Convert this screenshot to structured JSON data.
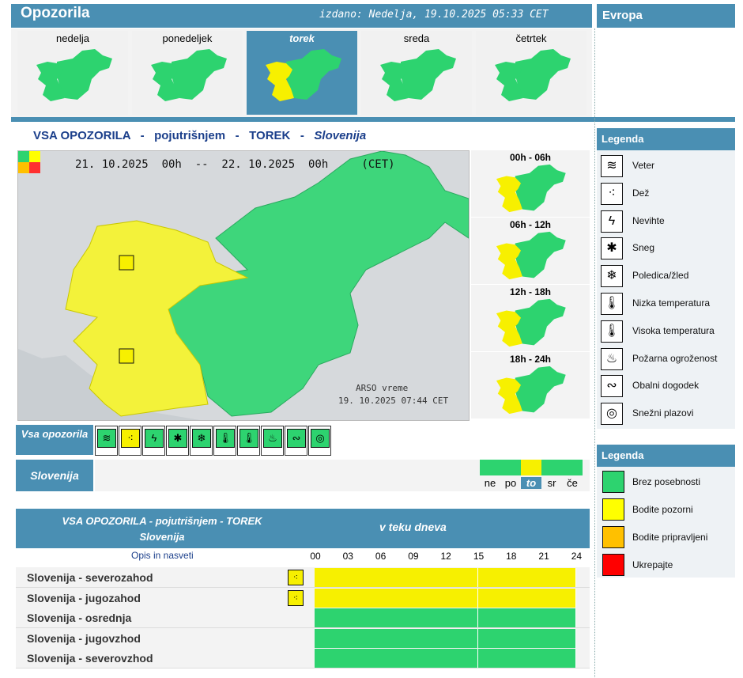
{
  "header": {
    "title": "Opozorila",
    "issued": "izdano: Nedelja, 19.10.2025 05:33 CET",
    "europe": "Evropa"
  },
  "days": [
    {
      "label": "nedelja",
      "active": false
    },
    {
      "label": "ponedeljek",
      "active": false
    },
    {
      "label": "torek",
      "active": true
    },
    {
      "label": "sreda",
      "active": false
    },
    {
      "label": "četrtek",
      "active": false
    }
  ],
  "headline": {
    "part1": "VSA OPOZORILA",
    "sep": "-",
    "part2": "pojutrišnjem",
    "part3": "TOREK",
    "part4": "Slovenija"
  },
  "map": {
    "date_range": "21. 10.2025  00h  --  22. 10.2025  00h     (CET)",
    "source": "ARSO vreme",
    "stamp": "19. 10.2025  07:44 CET"
  },
  "periods": [
    "00h - 06h",
    "06h - 12h",
    "12h - 18h",
    "18h - 24h"
  ],
  "strip": {
    "vsa_label": "Vsa opozorila",
    "region_label": "Slovenija",
    "icons": [
      "wind-icon",
      "rain-icon",
      "thunderstorm-icon",
      "snow-icon",
      "ice-icon",
      "low-temperature-icon",
      "high-temperature-icon",
      "fire-icon",
      "coastal-icon",
      "avalanche-icon"
    ],
    "weekdays": [
      {
        "label": "ne",
        "level": "green",
        "active": false
      },
      {
        "label": "po",
        "level": "green",
        "active": false
      },
      {
        "label": "to",
        "level": "yellow",
        "active": true
      },
      {
        "label": "sr",
        "level": "green",
        "active": false
      },
      {
        "label": "če",
        "level": "green",
        "active": false
      }
    ]
  },
  "table": {
    "title_line1": "VSA OPOZORILA - pojutrišnjem - TOREK",
    "title_line2": "Slovenija",
    "right_title": "v teku dneva",
    "desc_label": "Opis in nasveti",
    "hours": [
      "00",
      "03",
      "06",
      "09",
      "12",
      "15",
      "18",
      "21",
      "24"
    ],
    "rows": [
      {
        "name": "Slovenija - severozahod",
        "icon": "rain-icon",
        "level": "yellow"
      },
      {
        "name": "Slovenija - jugozahod",
        "icon": "rain-icon",
        "level": "yellow"
      },
      {
        "name": "Slovenija - osrednja",
        "icon": "",
        "level": "green"
      },
      {
        "name": "Slovenija - jugovzhod",
        "icon": "",
        "level": "green"
      },
      {
        "name": "Slovenija - severovzhod",
        "icon": "",
        "level": "green"
      }
    ]
  },
  "legend_types": {
    "title": "Legenda",
    "items": [
      {
        "label": "Veter",
        "icon": "wind-icon"
      },
      {
        "label": "Dež",
        "icon": "rain-icon"
      },
      {
        "label": "Nevihte",
        "icon": "thunderstorm-icon"
      },
      {
        "label": "Sneg",
        "icon": "snow-icon"
      },
      {
        "label": "Poledica/žled",
        "icon": "ice-icon"
      },
      {
        "label": "Nizka temperatura",
        "icon": "low-temperature-icon"
      },
      {
        "label": "Visoka temperatura",
        "icon": "high-temperature-icon"
      },
      {
        "label": "Požarna ogroženost",
        "icon": "fire-icon"
      },
      {
        "label": "Obalni dogodek",
        "icon": "coastal-icon"
      },
      {
        "label": "Snežni plazovi",
        "icon": "avalanche-icon"
      }
    ]
  },
  "legend_levels": {
    "title": "Legenda",
    "items": [
      {
        "label": "Brez posebnosti",
        "color": "#2dd36f"
      },
      {
        "label": "Bodite pozorni",
        "color": "#ffff00"
      },
      {
        "label": "Bodite pripravljeni",
        "color": "#ffc000"
      },
      {
        "label": "Ukrepajte",
        "color": "#ff0000"
      }
    ]
  },
  "colors": {
    "accent": "#4a8fb3",
    "green": "#2dd36f",
    "yellow": "#f7f000"
  }
}
